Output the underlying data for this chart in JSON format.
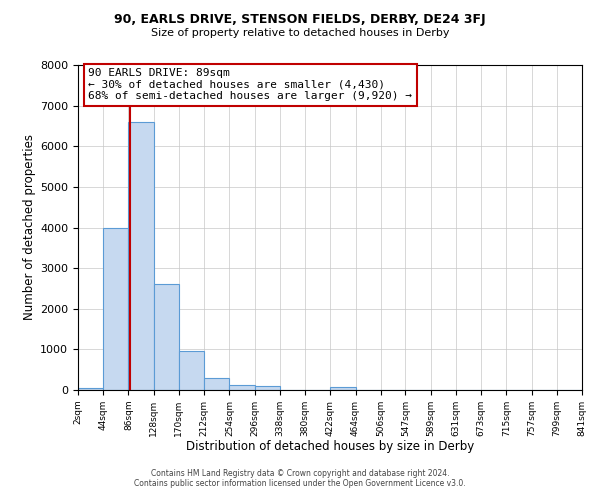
{
  "title": "90, EARLS DRIVE, STENSON FIELDS, DERBY, DE24 3FJ",
  "subtitle": "Size of property relative to detached houses in Derby",
  "xlabel": "Distribution of detached houses by size in Derby",
  "ylabel": "Number of detached properties",
  "footnote1": "Contains HM Land Registry data © Crown copyright and database right 2024.",
  "footnote2": "Contains public sector information licensed under the Open Government Licence v3.0.",
  "bin_edges": [
    2,
    44,
    86,
    128,
    170,
    212,
    254,
    296,
    338,
    380,
    422,
    464,
    506,
    547,
    589,
    631,
    673,
    715,
    757,
    799,
    841
  ],
  "bin_labels": [
    "2sqm",
    "44sqm",
    "86sqm",
    "128sqm",
    "170sqm",
    "212sqm",
    "254sqm",
    "296sqm",
    "338sqm",
    "380sqm",
    "422sqm",
    "464sqm",
    "506sqm",
    "547sqm",
    "589sqm",
    "631sqm",
    "673sqm",
    "715sqm",
    "757sqm",
    "799sqm",
    "841sqm"
  ],
  "bar_heights": [
    50,
    4000,
    6600,
    2600,
    950,
    300,
    130,
    100,
    0,
    0,
    70,
    0,
    0,
    0,
    0,
    0,
    0,
    0,
    0,
    0
  ],
  "bar_color": "#c6d9f0",
  "bar_edge_color": "#5b9bd5",
  "property_line_x": 89,
  "property_line_color": "#c00000",
  "ylim": [
    0,
    8000
  ],
  "yticks": [
    0,
    1000,
    2000,
    3000,
    4000,
    5000,
    6000,
    7000,
    8000
  ],
  "annotation_title": "90 EARLS DRIVE: 89sqm",
  "annotation_line1": "← 30% of detached houses are smaller (4,430)",
  "annotation_line2": "68% of semi-detached houses are larger (9,920) →",
  "annotation_box_color": "#c00000",
  "background_color": "#ffffff",
  "grid_color": "#c8c8c8"
}
